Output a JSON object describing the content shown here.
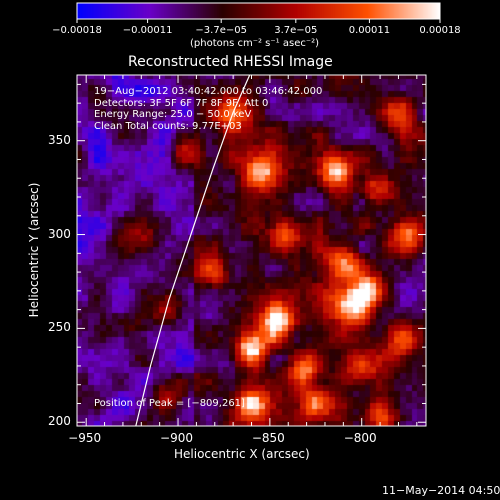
{
  "colorbar": {
    "tick_labels": [
      "−0.00018",
      "−0.00011",
      "−3.7e−05",
      "3.7e−05",
      "0.00011",
      "0.00018"
    ],
    "tick_values": [
      -0.00018,
      -0.00011,
      -3.7e-05,
      3.7e-05,
      0.00011,
      0.00018
    ],
    "range": [
      -0.00018,
      0.00018
    ],
    "unit_label": "(photons cm⁻² s⁻¹ asec⁻²)",
    "colors": [
      "#0000ff",
      "#6a00c8",
      "#2b0000",
      "#b00000",
      "#ff5000",
      "#ffffff"
    ]
  },
  "chart_data": {
    "type": "heatmap",
    "title": "Reconstructed RHESSI Image",
    "xlabel": "Heliocentric X (arcsec)",
    "ylabel": "Heliocentric Y (arcsec)",
    "xlim": [
      -955,
      -765
    ],
    "ylim": [
      198,
      385
    ],
    "x_ticks": [
      -950,
      -900,
      -850,
      -800
    ],
    "y_ticks": [
      200,
      250,
      300,
      350
    ],
    "x_tick_labels": [
      "−950",
      "−900",
      "−850",
      "−800"
    ],
    "y_tick_labels": [
      "200",
      "250",
      "300",
      "350"
    ],
    "info_lines": [
      "19−Aug−2012 03:40:42.000 to 03:46:42.000",
      "Detectors: 3F 5F 6F 7F 8F 9F, Att 0",
      "Energy Range: 25.0 − 50.0 keV",
      "Clean     Total counts: 9.77E+03"
    ],
    "peak_label": "Position of Peak = [−809,261]",
    "peak": [
      -809,
      261
    ],
    "limb_curve": [
      [
        -923,
        198
      ],
      [
        -915,
        230
      ],
      [
        -905,
        265
      ],
      [
        -893,
        300
      ],
      [
        -881,
        335
      ],
      [
        -870,
        365
      ],
      [
        -861,
        385
      ]
    ],
    "hot_spots": [
      {
        "x": -855,
        "y": 335,
        "amp": 0.75
      },
      {
        "x": -815,
        "y": 335,
        "amp": 0.85
      },
      {
        "x": -790,
        "y": 325,
        "amp": 0.8
      },
      {
        "x": -775,
        "y": 300,
        "amp": 0.9
      },
      {
        "x": -840,
        "y": 300,
        "amp": 0.85
      },
      {
        "x": -810,
        "y": 285,
        "amp": 0.95
      },
      {
        "x": -795,
        "y": 270,
        "amp": 0.9
      },
      {
        "x": -809,
        "y": 261,
        "amp": 1.0
      },
      {
        "x": -845,
        "y": 255,
        "amp": 0.95
      },
      {
        "x": -860,
        "y": 240,
        "amp": 1.0
      },
      {
        "x": -830,
        "y": 230,
        "amp": 0.85
      },
      {
        "x": -800,
        "y": 230,
        "amp": 0.8
      },
      {
        "x": -780,
        "y": 245,
        "amp": 0.75
      },
      {
        "x": -860,
        "y": 210,
        "amp": 0.8
      },
      {
        "x": -825,
        "y": 210,
        "amp": 0.85
      },
      {
        "x": -790,
        "y": 205,
        "amp": 0.75
      },
      {
        "x": -880,
        "y": 280,
        "amp": 0.6
      },
      {
        "x": -870,
        "y": 365,
        "amp": 0.6
      },
      {
        "x": -895,
        "y": 345,
        "amp": 0.45
      },
      {
        "x": -905,
        "y": 215,
        "amp": 0.5
      },
      {
        "x": -920,
        "y": 300,
        "amp": 0.4
      },
      {
        "x": -930,
        "y": 250,
        "amp": 0.45
      },
      {
        "x": -905,
        "y": 265,
        "amp": 0.4
      },
      {
        "x": -780,
        "y": 365,
        "amp": 0.7
      }
    ]
  },
  "footer": {
    "timestamp": "11−May−2014 04:50"
  }
}
